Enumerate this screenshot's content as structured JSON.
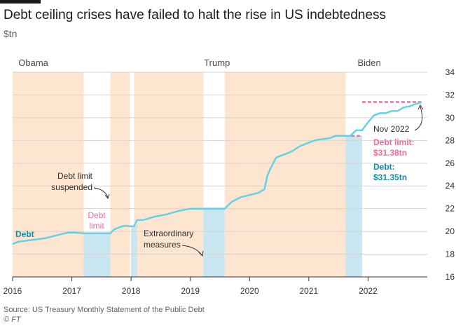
{
  "header": {
    "title": "Debt ceiling crises have failed to halt the rise in US indebtedness",
    "unit": "$tn"
  },
  "footer": {
    "source": "Source: US Treasury Monthly Statement of the Public Debt",
    "credit": "© FT"
  },
  "colors": {
    "debt_line": "#64d2e6",
    "debt_label": "#0f8fa8",
    "debt_limit": "#f26d9e",
    "presidency_band": "#fde5d0",
    "extraordinary_band": "#c8e6f2",
    "gridline": "#d8d3ce",
    "axis": "#333333"
  },
  "chart_data": {
    "type": "line",
    "xlim": [
      2016.0,
      2023.0
    ],
    "ylim": [
      16,
      34
    ],
    "x_ticks": [
      2016,
      2017,
      2018,
      2019,
      2020,
      2021,
      2022
    ],
    "y_ticks": [
      16,
      18,
      20,
      22,
      24,
      26,
      28,
      30,
      32,
      34
    ],
    "grid": true,
    "presidencies": [
      {
        "name": "Obama",
        "start": 2016.0,
        "end": 2017.05
      },
      {
        "name": "Trump",
        "start": 2017.05,
        "end": 2021.05
      },
      {
        "name": "Biden",
        "start": 2021.05,
        "end": 2023.0
      }
    ],
    "debt_ceiling_crises": [
      {
        "start": 2016.0,
        "end": 2017.2
      },
      {
        "start": 2017.65,
        "end": 2017.98
      },
      {
        "start": 2018.05,
        "end": 2019.22
      },
      {
        "start": 2019.58,
        "end": 2021.62
      }
    ],
    "extraordinary_measures": [
      {
        "start": 2017.2,
        "end": 2017.65
      },
      {
        "start": 2018.0,
        "end": 2018.1
      },
      {
        "start": 2019.22,
        "end": 2019.58
      },
      {
        "start": 2021.62,
        "end": 2021.9
      }
    ],
    "series": [
      {
        "name": "Debt",
        "x": [
          2016.0,
          2016.1,
          2016.25,
          2016.4,
          2016.55,
          2016.7,
          2016.85,
          2016.95,
          2017.05,
          2017.2,
          2017.3,
          2017.4,
          2017.5,
          2017.6,
          2017.65,
          2017.72,
          2017.82,
          2017.9,
          2017.98,
          2018.05,
          2018.1,
          2018.2,
          2018.4,
          2018.6,
          2018.8,
          2019.0,
          2019.1,
          2019.22,
          2019.3,
          2019.4,
          2019.5,
          2019.58,
          2019.7,
          2019.85,
          2020.0,
          2020.15,
          2020.25,
          2020.3,
          2020.35,
          2020.45,
          2020.55,
          2020.7,
          2020.85,
          2021.0,
          2021.1,
          2021.2,
          2021.35,
          2021.45,
          2021.55,
          2021.62,
          2021.7,
          2021.8,
          2021.9,
          2022.0,
          2022.1,
          2022.2,
          2022.3,
          2022.4,
          2022.5,
          2022.6,
          2022.7,
          2022.8,
          2022.9
        ],
        "values": [
          18.9,
          19.1,
          19.2,
          19.3,
          19.4,
          19.6,
          19.8,
          19.9,
          19.9,
          19.84,
          19.84,
          19.84,
          19.84,
          19.84,
          19.84,
          20.2,
          20.4,
          20.5,
          20.45,
          20.45,
          21.0,
          21.0,
          21.3,
          21.5,
          21.8,
          22.0,
          22.0,
          22.0,
          22.0,
          22.0,
          22.0,
          22.0,
          22.6,
          23.0,
          23.2,
          23.4,
          23.7,
          24.9,
          25.5,
          26.5,
          26.7,
          27.0,
          27.5,
          27.8,
          28.0,
          28.1,
          28.2,
          28.4,
          28.4,
          28.4,
          28.4,
          28.9,
          28.9,
          29.6,
          30.2,
          30.4,
          30.4,
          30.6,
          30.6,
          30.9,
          31.0,
          31.2,
          31.35
        ]
      }
    ],
    "debt_limit_segments": [
      {
        "start": 2017.2,
        "end": 2017.65,
        "value": 19.84
      },
      {
        "start": 2018.0,
        "end": 2018.1,
        "value": 20.45
      },
      {
        "start": 2019.22,
        "end": 2019.58,
        "value": 22.0
      },
      {
        "start": 2021.62,
        "end": 2021.9,
        "value": 28.4
      },
      {
        "start": 2021.9,
        "end": 2022.9,
        "value": 31.38
      }
    ],
    "annotations": {
      "debt": "Debt",
      "debt_limit": "Debt limit",
      "debt_limit_suspended": "Debt limit suspended",
      "extraordinary_measures": "Extraordinary measures",
      "nov_2022": "Nov 2022",
      "latest_limit": "Debt limit: $31.38tn",
      "latest_debt": "Debt: $31.35tn"
    }
  }
}
